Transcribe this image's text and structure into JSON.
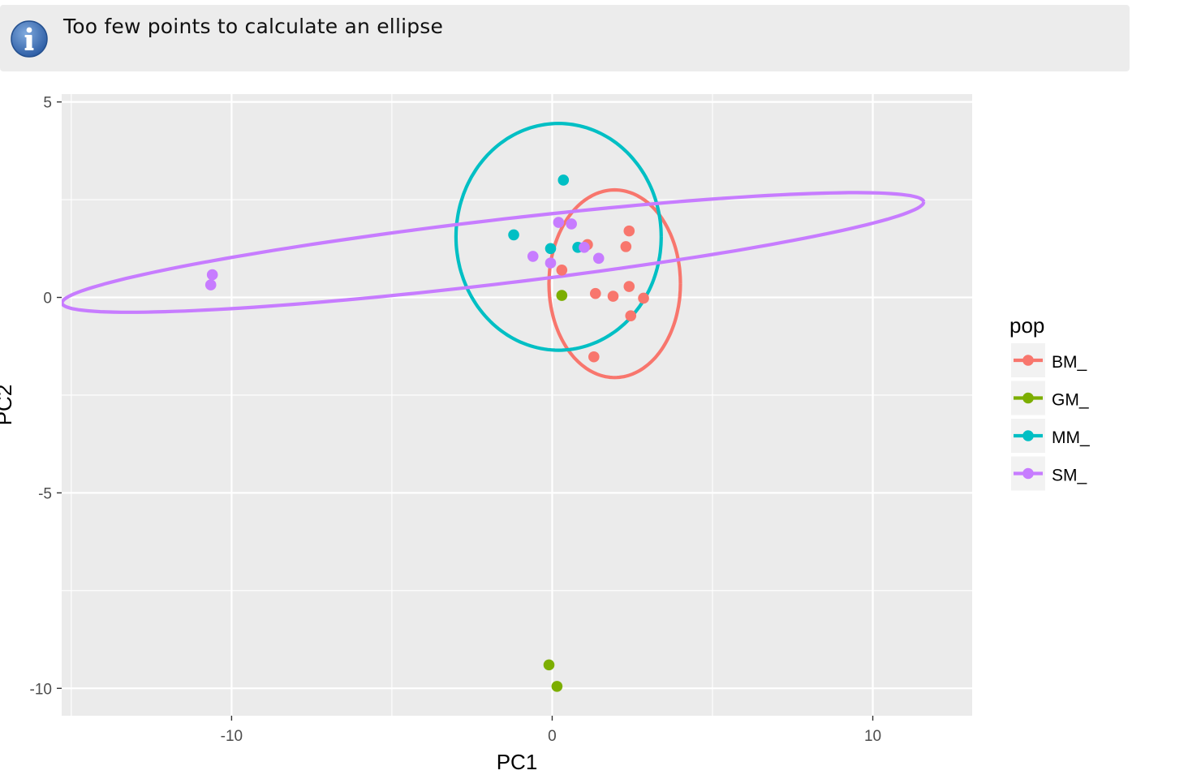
{
  "notification": {
    "icon": "info-icon",
    "message": "Too few points to calculate an ellipse",
    "icon_color": "#3a6eb5"
  },
  "chart_data": {
    "type": "scatter",
    "title": "",
    "xlabel": "PC1",
    "ylabel": "PC2",
    "xlim": [
      -15.3,
      13.1
    ],
    "ylim": [
      -10.7,
      5.2
    ],
    "x_ticks": [
      -10,
      0,
      10
    ],
    "x_tick_labels": [
      "-10",
      "0",
      "10"
    ],
    "y_ticks": [
      5,
      0,
      -5,
      -10
    ],
    "y_tick_labels": [
      "5",
      "0",
      "-5",
      "-10"
    ],
    "grid": true,
    "panel_background": "#ebebeb",
    "legend": {
      "title": "pop",
      "position": "right"
    },
    "series": [
      {
        "name": "BM_",
        "color": "#f8766d",
        "points": [
          [
            2.4,
            1.7
          ],
          [
            2.3,
            1.3
          ],
          [
            1.1,
            1.35
          ],
          [
            0.3,
            0.7
          ],
          [
            2.4,
            0.28
          ],
          [
            1.35,
            0.1
          ],
          [
            1.9,
            0.03
          ],
          [
            2.85,
            -0.02
          ],
          [
            2.45,
            -0.47
          ],
          [
            1.3,
            -1.52
          ]
        ],
        "ellipse": {
          "cx": 1.95,
          "cy": 0.35,
          "rx": 2.05,
          "ry": 2.4,
          "angle": 0
        }
      },
      {
        "name": "GM_",
        "color": "#7cae00",
        "points": [
          [
            0.3,
            0.05
          ],
          [
            -0.1,
            -9.4
          ],
          [
            0.15,
            -9.95
          ]
        ]
      },
      {
        "name": "MM_",
        "color": "#00bfc4",
        "points": [
          [
            0.35,
            3.0
          ],
          [
            -1.2,
            1.6
          ],
          [
            -0.05,
            1.25
          ],
          [
            0.8,
            1.28
          ]
        ],
        "ellipse": {
          "cx": 0.2,
          "cy": 1.55,
          "rx": 3.2,
          "ry": 2.9,
          "angle": 0
        }
      },
      {
        "name": "SM_",
        "color": "#c77cff",
        "points": [
          [
            0.2,
            1.92
          ],
          [
            0.6,
            1.88
          ],
          [
            1.0,
            1.28
          ],
          [
            -0.6,
            1.05
          ],
          [
            1.45,
            1.0
          ],
          [
            -0.05,
            0.88
          ],
          [
            -10.6,
            0.58
          ],
          [
            -10.65,
            0.32
          ]
        ],
        "ellipse": {
          "cx": -1.85,
          "cy": 1.15,
          "rx": 13.5,
          "ry": 0.82,
          "angle": 5.5
        }
      }
    ]
  }
}
